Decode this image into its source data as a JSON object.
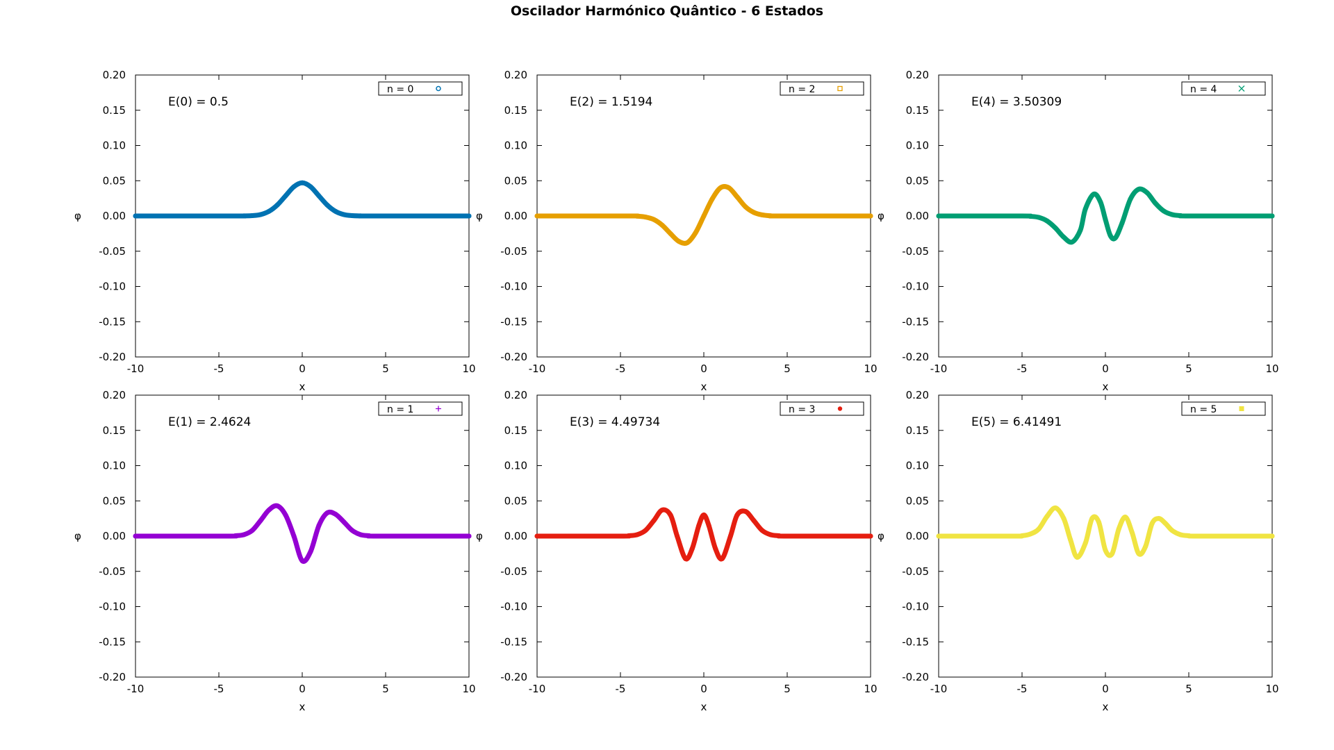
{
  "figure": {
    "title": "Oscilador Harmónico Quântico - 6 Estados"
  },
  "chart_data": [
    {
      "type": "line",
      "legend": "n = 0",
      "legend_position": "top-right",
      "annotation": "E(0) = 0.5",
      "color": "#0072b2",
      "marker": "circle",
      "xlabel": "x",
      "ylabel": "φ",
      "xlim": [
        -10,
        10
      ],
      "ylim": [
        -0.2,
        0.2
      ],
      "xticks": [
        "-10",
        "-5",
        "0",
        "5",
        "10"
      ],
      "yticks": [
        "-0.20",
        "-0.15",
        "-0.10",
        "-0.05",
        "0.00",
        "0.05",
        "0.10",
        "0.15",
        "0.20"
      ],
      "grid": false,
      "x": [
        -10,
        -4,
        -3.5,
        -3,
        -2.5,
        -2,
        -1.5,
        -1,
        -0.5,
        0,
        0.5,
        1,
        1.5,
        2,
        2.5,
        3,
        3.5,
        4,
        10
      ],
      "y": [
        0,
        0,
        0.0001,
        0.0005,
        0.002,
        0.0065,
        0.0155,
        0.0285,
        0.0415,
        0.047,
        0.0415,
        0.0285,
        0.0155,
        0.0065,
        0.002,
        0.0005,
        0.0001,
        0,
        0
      ]
    },
    {
      "type": "line",
      "legend": "n = 2",
      "legend_position": "top-right",
      "annotation": "E(2) = 1.5194",
      "color": "#e69f00",
      "marker": "square",
      "xlabel": "x",
      "ylabel": "φ",
      "xlim": [
        -10,
        10
      ],
      "ylim": [
        -0.2,
        0.2
      ],
      "xticks": [
        "-10",
        "-5",
        "0",
        "5",
        "10"
      ],
      "yticks": [
        "-0.20",
        "-0.15",
        "-0.10",
        "-0.05",
        "0.00",
        "0.05",
        "0.10",
        "0.15",
        "0.20"
      ],
      "grid": false,
      "x": [
        -10,
        -4.5,
        -4,
        -3.5,
        -3,
        -2.5,
        -2,
        -1.5,
        -1,
        -0.5,
        0,
        0.5,
        1,
        1.5,
        2,
        2.5,
        3,
        3.5,
        4,
        4.5,
        10
      ],
      "y": [
        0,
        0,
        -0.0003,
        -0.0015,
        -0.005,
        -0.013,
        -0.025,
        -0.036,
        -0.038,
        -0.024,
        0,
        0.024,
        0.04,
        0.04,
        0.027,
        0.013,
        0.005,
        0.0015,
        0.0003,
        0,
        0
      ]
    },
    {
      "type": "line",
      "legend": "n = 4",
      "legend_position": "top-right",
      "annotation": "E(4) = 3.50309",
      "color": "#009e73",
      "marker": "cross",
      "xlabel": "x",
      "ylabel": "φ",
      "xlim": [
        -10,
        10
      ],
      "ylim": [
        -0.2,
        0.2
      ],
      "xticks": [
        "-10",
        "-5",
        "0",
        "5",
        "10"
      ],
      "yticks": [
        "-0.20",
        "-0.15",
        "-0.10",
        "-0.05",
        "0.00",
        "0.05",
        "0.10",
        "0.15",
        "0.20"
      ],
      "grid": false,
      "x": [
        -10,
        -5,
        -4.5,
        -4,
        -3.5,
        -3,
        -2.5,
        -2,
        -1.5,
        -1.2,
        -0.7,
        -0.3,
        0,
        0.3,
        0.6,
        1,
        1.5,
        2,
        2.5,
        3,
        3.5,
        4,
        4.5,
        5,
        10
      ],
      "y": [
        0,
        0,
        -0.0005,
        -0.002,
        -0.007,
        -0.017,
        -0.03,
        -0.037,
        -0.02,
        0.01,
        0.031,
        0.02,
        -0.005,
        -0.028,
        -0.031,
        -0.01,
        0.024,
        0.038,
        0.033,
        0.018,
        0.007,
        0.002,
        0.0005,
        0,
        0
      ]
    },
    {
      "type": "line",
      "legend": "n = 1",
      "legend_position": "top-right",
      "annotation": "E(1) = 2.4624",
      "color": "#9400d3",
      "marker": "plus",
      "xlabel": "x",
      "ylabel": "φ",
      "xlim": [
        -10,
        10
      ],
      "ylim": [
        -0.2,
        0.2
      ],
      "xticks": [
        "-10",
        "-5",
        "0",
        "5",
        "10"
      ],
      "yticks": [
        "-0.20",
        "-0.15",
        "-0.10",
        "-0.05",
        "0.00",
        "0.05",
        "0.10",
        "0.15",
        "0.20"
      ],
      "grid": false,
      "x": [
        -10,
        -4.5,
        -4,
        -3.5,
        -3,
        -2.5,
        -2,
        -1.5,
        -1,
        -0.5,
        0,
        0.5,
        1,
        1.5,
        2,
        2.5,
        3,
        3.5,
        4,
        4.5,
        10
      ],
      "y": [
        0,
        0,
        0.0005,
        0.002,
        0.008,
        0.022,
        0.037,
        0.043,
        0.03,
        0,
        -0.035,
        -0.022,
        0.015,
        0.033,
        0.031,
        0.02,
        0.008,
        0.002,
        0.0005,
        0,
        0
      ]
    },
    {
      "type": "line",
      "legend": "n = 3",
      "legend_position": "top-right",
      "annotation": "E(3) = 4.49734",
      "color": "#e51e10",
      "marker": "filled-circle",
      "xlabel": "x",
      "ylabel": "φ",
      "xlim": [
        -10,
        10
      ],
      "ylim": [
        -0.2,
        0.2
      ],
      "xticks": [
        "-10",
        "-5",
        "0",
        "5",
        "10"
      ],
      "yticks": [
        "-0.20",
        "-0.15",
        "-0.10",
        "-0.05",
        "0.00",
        "0.05",
        "0.10",
        "0.15",
        "0.20"
      ],
      "grid": false,
      "x": [
        -10,
        -5,
        -4.5,
        -4,
        -3.5,
        -3,
        -2.5,
        -2,
        -1.6,
        -1.1,
        -0.7,
        -0.3,
        0,
        0.3,
        0.7,
        1.1,
        1.6,
        2,
        2.5,
        3,
        3.5,
        4,
        4.5,
        5,
        10
      ],
      "y": [
        0,
        0,
        0.0005,
        0.002,
        0.008,
        0.022,
        0.037,
        0.03,
        0,
        -0.032,
        -0.018,
        0.015,
        0.03,
        0.015,
        -0.018,
        -0.032,
        0,
        0.03,
        0.035,
        0.022,
        0.008,
        0.002,
        0.0005,
        0,
        0
      ]
    },
    {
      "type": "line",
      "legend": "n = 5",
      "legend_position": "top-right",
      "annotation": "E(5) = 6.41491",
      "color": "#f0e442",
      "marker": "filled-square",
      "xlabel": "x",
      "ylabel": "φ",
      "xlim": [
        -10,
        10
      ],
      "ylim": [
        -0.2,
        0.2
      ],
      "xticks": [
        "-10",
        "-5",
        "0",
        "5",
        "10"
      ],
      "yticks": [
        "-0.20",
        "-0.15",
        "-0.10",
        "-0.05",
        "0.00",
        "0.05",
        "0.10",
        "0.15",
        "0.20"
      ],
      "grid": false,
      "x": [
        -10,
        -5.5,
        -5,
        -4.5,
        -4,
        -3.5,
        -3,
        -2.5,
        -2.1,
        -1.7,
        -1.2,
        -0.8,
        -0.4,
        0,
        0.4,
        0.8,
        1.2,
        1.6,
        2,
        2.4,
        2.8,
        3.2,
        3.6,
        4,
        4.5,
        5,
        5.5,
        10
      ],
      "y": [
        0,
        0,
        0.0005,
        0.003,
        0.01,
        0.028,
        0.04,
        0.025,
        -0.005,
        -0.03,
        -0.01,
        0.025,
        0.02,
        -0.02,
        -0.025,
        0.01,
        0.027,
        0.005,
        -0.025,
        -0.015,
        0.018,
        0.025,
        0.018,
        0.008,
        0.002,
        0.0005,
        0,
        0
      ]
    }
  ]
}
